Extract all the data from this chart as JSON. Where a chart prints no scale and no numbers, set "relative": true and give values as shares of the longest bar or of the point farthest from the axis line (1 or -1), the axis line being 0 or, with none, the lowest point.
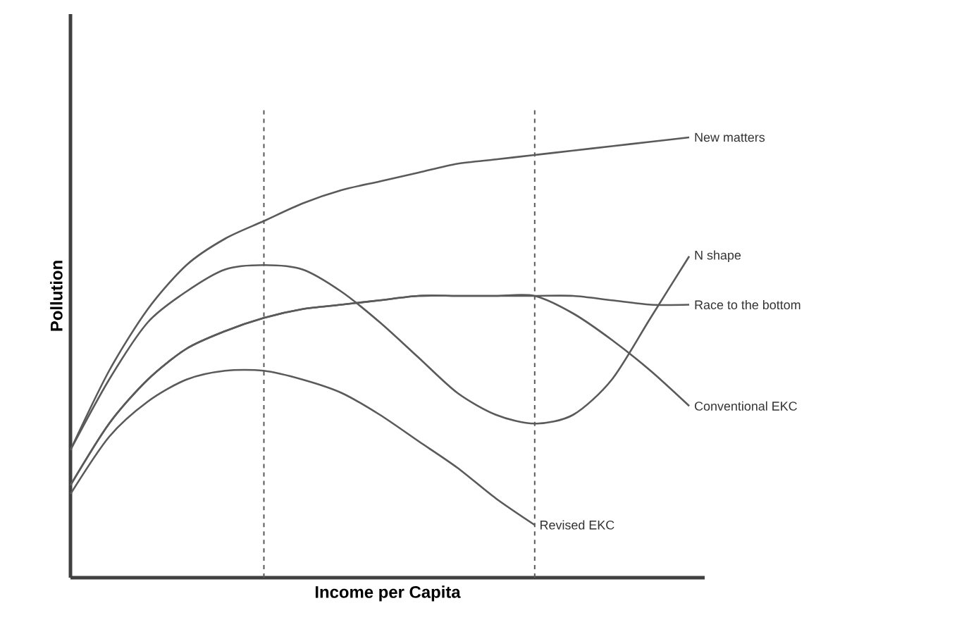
{
  "chart_data": {
    "type": "line",
    "relative": true,
    "xlabel": "Income per Capita",
    "ylabel": "Pollution",
    "marker": "none",
    "categories": [
      null,
      null,
      null,
      null,
      null,
      null,
      null,
      null,
      null,
      null,
      null,
      null,
      null,
      null,
      null,
      null,
      null
    ],
    "series": [
      {
        "name": "New matters",
        "color": "#5a5a5a",
        "values": [
          0.29,
          0.47,
          0.61,
          0.71,
          0.77,
          0.81,
          0.85,
          0.88,
          0.9,
          0.92,
          0.94,
          0.95,
          0.96,
          0.97,
          0.98,
          0.99,
          1
        ]
      },
      {
        "name": "N shape",
        "color": "#5a5a5a",
        "values": [
          0.29,
          0.45,
          0.58,
          0.65,
          0.7,
          0.71,
          0.7,
          0.65,
          0.58,
          0.5,
          0.42,
          0.37,
          0.35,
          0.37,
          0.45,
          0.59,
          0.73
        ]
      },
      {
        "name": "Race to the bottom",
        "color": "#5a5a5a",
        "values": [
          0.21,
          0.35,
          0.45,
          0.52,
          0.56,
          0.59,
          0.61,
          0.62,
          0.63,
          0.64,
          0.64,
          0.64,
          0.64,
          0.64,
          0.63,
          0.62,
          0.62
        ]
      },
      {
        "name": "Conventional EKC",
        "color": "#5a5a5a",
        "values": [
          0.21,
          0.35,
          0.45,
          0.52,
          0.56,
          0.59,
          0.61,
          0.62,
          0.63,
          0.64,
          0.64,
          0.64,
          0.64,
          0.6,
          0.54,
          0.47,
          0.39
        ]
      },
      {
        "name": "Revised EKC",
        "color": "#5a5a5a",
        "values": [
          0.19,
          0.32,
          0.4,
          0.45,
          0.47,
          0.47,
          0.45,
          0.42,
          0.37,
          0.31,
          0.25,
          0.18,
          0.12,
          null,
          null,
          null,
          null
        ]
      }
    ]
  }
}
